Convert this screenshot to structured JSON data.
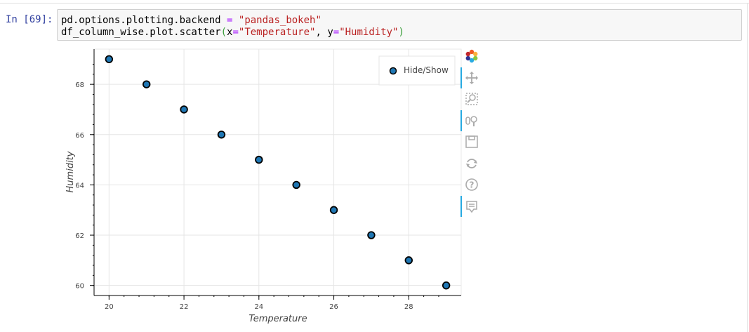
{
  "cell": {
    "prompt": "In [69]:",
    "line1": {
      "part1": "pd.options.plotting.backend ",
      "op": "=",
      "space": " ",
      "str": "\"pandas_bokeh\""
    },
    "line2": {
      "part1": "df_column_wise.plot.scatter",
      "open": "(",
      "x_kw": "x",
      "eq1": "=",
      "x_val": "\"Temperature\"",
      "sep": ", ",
      "y_kw": "y",
      "eq2": "=",
      "y_val": "\"Humidity\"",
      "close": ")"
    }
  },
  "toolbar": {
    "tools": [
      "bokeh-logo-icon",
      "pan-icon",
      "box-zoom-icon",
      "wheel-zoom-icon",
      "save-icon",
      "reset-icon",
      "help-icon",
      "hover-icon"
    ],
    "active": [
      "pan-icon",
      "wheel-zoom-icon",
      "hover-icon"
    ]
  },
  "colors": {
    "marker_fill": "#1f77b4",
    "marker_line": "#000000",
    "grid": "#e5e5e5",
    "toolbar_active": "#26aae1"
  },
  "chart_data": {
    "type": "scatter",
    "x": [
      20,
      21,
      22,
      23,
      24,
      25,
      26,
      27,
      28,
      29
    ],
    "y": [
      69,
      68,
      67,
      66,
      65,
      64,
      63,
      62,
      61,
      60
    ],
    "xlabel": "Temperature",
    "ylabel": "Humidity",
    "xlim": [
      19.6,
      29.4
    ],
    "ylim": [
      59.6,
      69.4
    ],
    "xticks": [
      "20",
      "22",
      "24",
      "26",
      "28"
    ],
    "yticks": [
      "60",
      "62",
      "64",
      "66",
      "68"
    ],
    "legend": {
      "label": "Hide/Show",
      "position": "top-right"
    },
    "grid": true
  }
}
